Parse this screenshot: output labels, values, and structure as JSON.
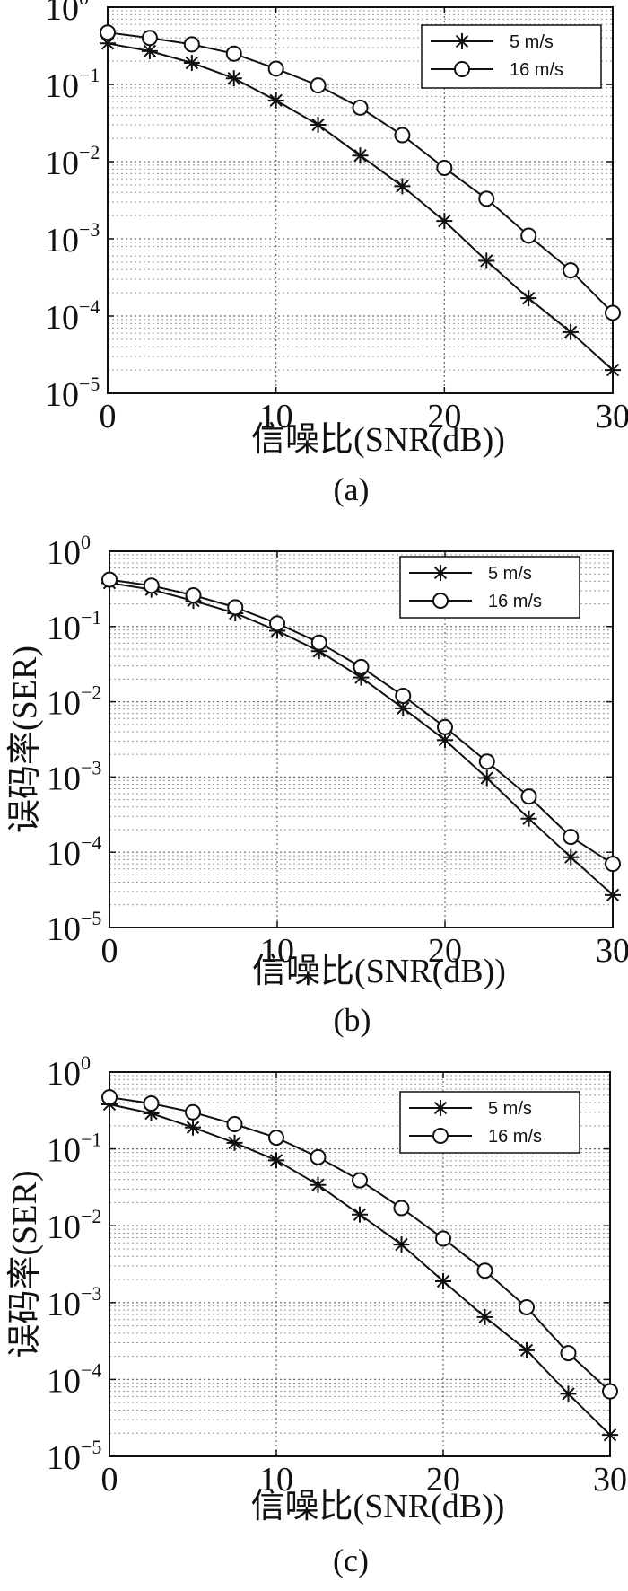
{
  "chart_data": [
    {
      "type": "line",
      "panel_label": "(a)",
      "xlabel": "信噪比(SNR(dB))",
      "ylabel": "",
      "x_scale": "linear",
      "y_scale": "log",
      "xlim": [
        0,
        30
      ],
      "ylim": [
        1e-05,
        1
      ],
      "xticks": [
        "0",
        "10",
        "20",
        "30"
      ],
      "yticks": [
        {
          "base": "10",
          "exp": "0"
        },
        {
          "base": "10",
          "exp": "−1"
        },
        {
          "base": "10",
          "exp": "−2"
        },
        {
          "base": "10",
          "exp": "−3"
        },
        {
          "base": "10",
          "exp": "−4"
        },
        {
          "base": "10",
          "exp": "−5"
        }
      ],
      "grid": true,
      "legend_position": "top-right",
      "series": [
        {
          "name": "5 m/s",
          "marker": "star",
          "x": [
            0,
            2.5,
            5,
            7.5,
            10,
            12.5,
            15,
            17.5,
            20,
            22.5,
            25,
            27.5,
            30
          ],
          "y": [
            0.34,
            0.27,
            0.19,
            0.12,
            0.062,
            0.03,
            0.012,
            0.0048,
            0.0017,
            0.00052,
            0.00017,
            6.2e-05,
            2e-05
          ]
        },
        {
          "name": "16 m/s",
          "marker": "circle",
          "x": [
            0,
            2.5,
            5,
            7.5,
            10,
            12.5,
            15,
            17.5,
            20,
            22.5,
            25,
            27.5,
            30
          ],
          "y": [
            0.47,
            0.4,
            0.33,
            0.25,
            0.16,
            0.097,
            0.05,
            0.022,
            0.0083,
            0.0033,
            0.0011,
            0.00039,
            0.00011
          ]
        }
      ]
    },
    {
      "type": "line",
      "panel_label": "(b)",
      "xlabel": "信噪比(SNR(dB))",
      "ylabel": "误码率(SER)",
      "x_scale": "linear",
      "y_scale": "log",
      "xlim": [
        0,
        30
      ],
      "ylim": [
        1e-05,
        1
      ],
      "xticks": [
        "0",
        "10",
        "20",
        "30"
      ],
      "yticks": [
        {
          "base": "10",
          "exp": "0"
        },
        {
          "base": "10",
          "exp": "−1"
        },
        {
          "base": "10",
          "exp": "−2"
        },
        {
          "base": "10",
          "exp": "−3"
        },
        {
          "base": "10",
          "exp": "−4"
        },
        {
          "base": "10",
          "exp": "−5"
        }
      ],
      "grid": true,
      "legend_position": "top-right",
      "series": [
        {
          "name": "5 m/s",
          "marker": "star",
          "x": [
            0,
            2.5,
            5,
            7.5,
            10,
            12.5,
            15,
            17.5,
            20,
            22.5,
            25,
            27.5,
            30
          ],
          "y": [
            0.38,
            0.31,
            0.22,
            0.15,
            0.088,
            0.047,
            0.021,
            0.0082,
            0.0031,
            0.00097,
            0.00028,
            8.6e-05,
            2.7e-05
          ]
        },
        {
          "name": "16 m/s",
          "marker": "circle",
          "x": [
            0,
            2.5,
            5,
            7.5,
            10,
            12.5,
            15,
            17.5,
            20,
            22.5,
            25,
            27.5,
            30
          ],
          "y": [
            0.42,
            0.35,
            0.26,
            0.18,
            0.11,
            0.061,
            0.029,
            0.012,
            0.0046,
            0.0016,
            0.00055,
            0.00016,
            7e-05
          ]
        }
      ]
    },
    {
      "type": "line",
      "panel_label": "(c)",
      "xlabel": "信噪比(SNR(dB))",
      "ylabel": "误码率(SER)",
      "x_scale": "linear",
      "y_scale": "log",
      "xlim": [
        0,
        30
      ],
      "ylim": [
        1e-05,
        1
      ],
      "xticks": [
        "0",
        "10",
        "20",
        "30"
      ],
      "yticks": [
        {
          "base": "10",
          "exp": "0"
        },
        {
          "base": "10",
          "exp": "−1"
        },
        {
          "base": "10",
          "exp": "−2"
        },
        {
          "base": "10",
          "exp": "−3"
        },
        {
          "base": "10",
          "exp": "−4"
        },
        {
          "base": "10",
          "exp": "−5"
        }
      ],
      "grid": true,
      "legend_position": "top-right",
      "series": [
        {
          "name": "5 m/s",
          "marker": "star",
          "x": [
            0,
            2.5,
            5,
            7.5,
            10,
            12.5,
            15,
            17.5,
            20,
            22.5,
            25,
            27.5,
            30
          ],
          "y": [
            0.38,
            0.29,
            0.19,
            0.12,
            0.071,
            0.034,
            0.014,
            0.0057,
            0.0019,
            0.00065,
            0.00024,
            6.5e-05,
            1.9e-05
          ]
        },
        {
          "name": "16 m/s",
          "marker": "circle",
          "x": [
            0,
            2.5,
            5,
            7.5,
            10,
            12.5,
            15,
            17.5,
            20,
            22.5,
            25,
            27.5,
            30
          ],
          "y": [
            0.47,
            0.39,
            0.3,
            0.21,
            0.14,
            0.078,
            0.039,
            0.017,
            0.0068,
            0.0026,
            0.00087,
            0.00022,
            7e-05
          ]
        }
      ]
    }
  ]
}
